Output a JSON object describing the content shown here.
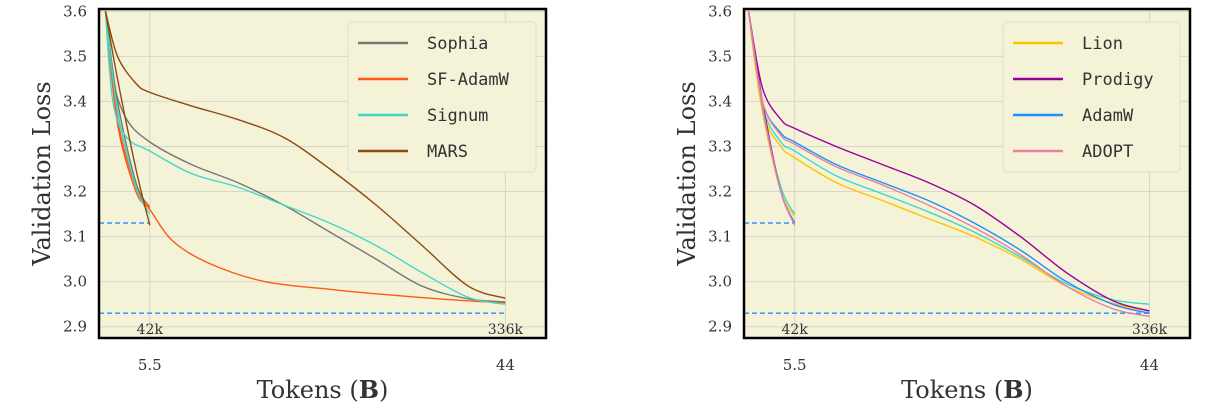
{
  "chart_data": [
    {
      "type": "line",
      "title": "",
      "xlabel": "Tokens (B)",
      "xlabel_plain": "Tokens (",
      "xlabel_bold": "B",
      "xlabel_close": ")",
      "ylabel": "Validation Loss",
      "xlim": [
        0,
        48.4
      ],
      "ylim": [
        2.875,
        3.605
      ],
      "xticks": [
        5.5,
        44
      ],
      "xtick_labels": [
        "5.5",
        "44"
      ],
      "yticks": [
        2.9,
        3.0,
        3.1,
        3.2,
        3.3,
        3.4,
        3.5,
        3.6
      ],
      "ytick_labels": [
        "2.9",
        "3.0",
        "3.1",
        "3.2",
        "3.3",
        "3.4",
        "3.5",
        "3.6"
      ],
      "grid": true,
      "legend_position": "top-right",
      "background": "#f4f3d8",
      "annotations": [
        {
          "text": "42k",
          "x": 5.5
        },
        {
          "text": "336k",
          "x": 44
        }
      ],
      "reference_lines": [
        {
          "y": 3.13,
          "x_end": 5.5,
          "color": "#1e90ff",
          "style": "dashed"
        },
        {
          "y": 2.93,
          "x_end": 44,
          "color": "#1e90ff",
          "style": "dashed"
        }
      ],
      "series": [
        {
          "name": "Sophia",
          "color": "#777777",
          "long": [
            [
              0.7,
              3.6
            ],
            [
              1.5,
              3.45
            ],
            [
              3,
              3.36
            ],
            [
              5.5,
              3.31
            ],
            [
              10,
              3.26
            ],
            [
              15,
              3.22
            ],
            [
              20,
              3.17
            ],
            [
              25,
              3.11
            ],
            [
              30,
              3.05
            ],
            [
              35,
              2.99
            ],
            [
              40,
              2.962
            ],
            [
              44,
              2.955
            ]
          ],
          "short": [
            [
              0.7,
              3.6
            ],
            [
              2,
              3.4
            ],
            [
              4,
              3.22
            ],
            [
              5.5,
              3.165
            ]
          ]
        },
        {
          "name": "SF-AdamW",
          "color": "#ff5a14",
          "long": [
            [
              0.7,
              3.6
            ],
            [
              2,
              3.35
            ],
            [
              4,
              3.2
            ],
            [
              5.5,
              3.16
            ],
            [
              8,
              3.09
            ],
            [
              12,
              3.04
            ],
            [
              18,
              3.0
            ],
            [
              25,
              2.983
            ],
            [
              30,
              2.973
            ],
            [
              38,
              2.96
            ],
            [
              44,
              2.953
            ]
          ],
          "short": [
            [
              0.7,
              3.6
            ],
            [
              2,
              3.36
            ],
            [
              4,
              3.21
            ],
            [
              5.5,
              3.165
            ]
          ]
        },
        {
          "name": "Signum",
          "color": "#3ed8c8",
          "long": [
            [
              0.7,
              3.6
            ],
            [
              1.5,
              3.4
            ],
            [
              3,
              3.32
            ],
            [
              5.5,
              3.29
            ],
            [
              10,
              3.24
            ],
            [
              15,
              3.21
            ],
            [
              20,
              3.17
            ],
            [
              25,
              3.13
            ],
            [
              30,
              3.08
            ],
            [
              35,
              3.02
            ],
            [
              40,
              2.965
            ],
            [
              44,
              2.95
            ]
          ],
          "short": [
            [
              0.7,
              3.6
            ],
            [
              2,
              3.38
            ],
            [
              4,
              3.21
            ],
            [
              5.5,
              3.15
            ]
          ]
        },
        {
          "name": "MARS",
          "color": "#8b4a10",
          "long": [
            [
              0.7,
              3.6
            ],
            [
              2,
              3.5
            ],
            [
              4,
              3.44
            ],
            [
              5.5,
              3.42
            ],
            [
              10,
              3.39
            ],
            [
              15,
              3.36
            ],
            [
              20,
              3.32
            ],
            [
              25,
              3.25
            ],
            [
              30,
              3.17
            ],
            [
              35,
              3.08
            ],
            [
              40,
              2.99
            ],
            [
              44,
              2.963
            ]
          ],
          "short": [
            [
              0.7,
              3.6
            ],
            [
              2,
              3.45
            ],
            [
              4,
              3.25
            ],
            [
              5.5,
              3.125
            ]
          ]
        }
      ]
    },
    {
      "type": "line",
      "title": "",
      "xlabel": "Tokens (B)",
      "xlabel_plain": "Tokens (",
      "xlabel_bold": "B",
      "xlabel_close": ")",
      "ylabel": "Validation Loss",
      "xlim": [
        0,
        48.4
      ],
      "ylim": [
        2.875,
        3.605
      ],
      "xticks": [
        5.5,
        44
      ],
      "xtick_labels": [
        "5.5",
        "44"
      ],
      "yticks": [
        2.9,
        3.0,
        3.1,
        3.2,
        3.3,
        3.4,
        3.5,
        3.6
      ],
      "ytick_labels": [
        "2.9",
        "3.0",
        "3.1",
        "3.2",
        "3.3",
        "3.4",
        "3.5",
        "3.6"
      ],
      "grid": true,
      "legend_position": "top-right",
      "background": "#f4f3d8",
      "annotations": [
        {
          "text": "42k",
          "x": 5.5
        },
        {
          "text": "336k",
          "x": 44
        }
      ],
      "reference_lines": [
        {
          "y": 3.13,
          "x_end": 5.5,
          "color": "#1e90ff",
          "style": "dashed"
        },
        {
          "y": 2.93,
          "x_end": 44,
          "color": "#1e90ff",
          "style": "dashed"
        }
      ],
      "series": [
        {
          "name": null,
          "color": "#3ed8c8",
          "long": [
            [
              0.5,
              3.6
            ],
            [
              2,
              3.39
            ],
            [
              4,
              3.31
            ],
            [
              5.5,
              3.29
            ],
            [
              10,
              3.235
            ],
            [
              15,
              3.195
            ],
            [
              20,
              3.155
            ],
            [
              25,
              3.11
            ],
            [
              30,
              3.055
            ],
            [
              35,
              2.995
            ],
            [
              40,
              2.96
            ],
            [
              44,
              2.95
            ]
          ],
          "short": [
            [
              0.5,
              3.6
            ],
            [
              2,
              3.38
            ],
            [
              4,
              3.21
            ],
            [
              5.5,
              3.15
            ]
          ]
        },
        {
          "name": "Lion",
          "color": "#ffc400",
          "long": [
            [
              0.5,
              3.6
            ],
            [
              2,
              3.38
            ],
            [
              4,
              3.3
            ],
            [
              5.5,
              3.275
            ],
            [
              10,
              3.22
            ],
            [
              15,
              3.18
            ],
            [
              20,
              3.14
            ],
            [
              25,
              3.1
            ],
            [
              30,
              3.05
            ],
            [
              35,
              2.99
            ],
            [
              40,
              2.952
            ],
            [
              44,
              2.935
            ]
          ],
          "short": [
            [
              0.5,
              3.6
            ],
            [
              2,
              3.38
            ],
            [
              4,
              3.2
            ],
            [
              5.5,
              3.145
            ]
          ]
        },
        {
          "name": "Prodigy",
          "color": "#990099",
          "long": [
            [
              0.5,
              3.6
            ],
            [
              2,
              3.43
            ],
            [
              4,
              3.36
            ],
            [
              5.5,
              3.34
            ],
            [
              10,
              3.3
            ],
            [
              15,
              3.26
            ],
            [
              20,
              3.22
            ],
            [
              25,
              3.17
            ],
            [
              30,
              3.1
            ],
            [
              35,
              3.02
            ],
            [
              40,
              2.958
            ],
            [
              44,
              2.935
            ]
          ],
          "short": [
            [
              0.5,
              3.6
            ],
            [
              2,
              3.4
            ],
            [
              4,
              3.2
            ],
            [
              5.5,
              3.13
            ]
          ]
        },
        {
          "name": "AdamW",
          "color": "#1e8fff",
          "long": [
            [
              0.5,
              3.6
            ],
            [
              2,
              3.4
            ],
            [
              4,
              3.33
            ],
            [
              5.5,
              3.31
            ],
            [
              10,
              3.26
            ],
            [
              15,
              3.22
            ],
            [
              20,
              3.18
            ],
            [
              25,
              3.13
            ],
            [
              30,
              3.07
            ],
            [
              35,
              3.0
            ],
            [
              40,
              2.95
            ],
            [
              44,
              2.93
            ]
          ],
          "short": [
            [
              0.5,
              3.6
            ],
            [
              2,
              3.39
            ],
            [
              4,
              3.2
            ],
            [
              5.5,
              3.13
            ]
          ]
        },
        {
          "name": "ADOPT",
          "color": "#e8809f",
          "long": [
            [
              0.5,
              3.6
            ],
            [
              2,
              3.4
            ],
            [
              4,
              3.325
            ],
            [
              5.5,
              3.305
            ],
            [
              10,
              3.255
            ],
            [
              15,
              3.215
            ],
            [
              20,
              3.17
            ],
            [
              25,
              3.12
            ],
            [
              30,
              3.06
            ],
            [
              35,
              2.99
            ],
            [
              40,
              2.94
            ],
            [
              44,
              2.923
            ]
          ],
          "short": [
            [
              0.5,
              3.6
            ],
            [
              2,
              3.39
            ],
            [
              4,
              3.2
            ],
            [
              5.5,
              3.125
            ]
          ]
        }
      ]
    }
  ]
}
